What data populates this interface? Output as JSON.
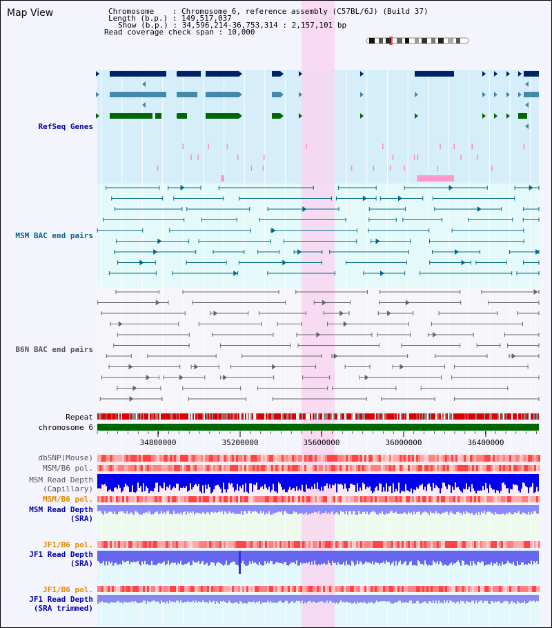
{
  "title": "Map View",
  "header": {
    "chromosome_line": "Chromosome    : Chromosome 6, reference assembly (C57BL/6J) (Build 37)",
    "length_line": "Length (b.p.) : 149,517,037",
    "show_line": "Show (b.p.) : 34,596,214-36,753,314 : 2,157,101 bp",
    "span_line": "Read coverage check span : 10,000"
  },
  "tracks": {
    "refseq": "RefSeq Genes",
    "msm_bac": "MSM BAC end pairs",
    "b6n_bac": "B6N BAC end pairs",
    "repeat": "Repeat",
    "chromosome": "chromosome 6",
    "dbsnp": "dbSNP(Mouse)",
    "msm_b6_pol_1": "MSM/B6 pol.",
    "msm_read_depth_cap": "MSM Read Depth",
    "capillary": "(Capillary)",
    "msm_b6_pol_2": "MSM/B6 pol.",
    "msm_read_depth_sra": "MSM Read Depth",
    "sra_1": "(SRA)",
    "jf1_b6_pol_1": "JF1/B6 pol.",
    "jf1_read_depth": "JF1 Read Depth",
    "sra_2": "(SRA)",
    "jf1_b6_pol_2": "JF1/B6 pol.",
    "jf1_read_depth_trim": "JF1 Read Depth",
    "sra_trimmed": "(SRA trimmed)"
  },
  "axis_ticks": [
    "34800000",
    "35200000",
    "35600000",
    "36000000",
    "36400000"
  ],
  "colors": {
    "label_blue": "#0000aa",
    "label_teal": "#006688",
    "label_gray": "#555555",
    "label_orange": "#e08800",
    "highlight": "#f8d6f0",
    "chromosome_bar": "#006600"
  }
}
